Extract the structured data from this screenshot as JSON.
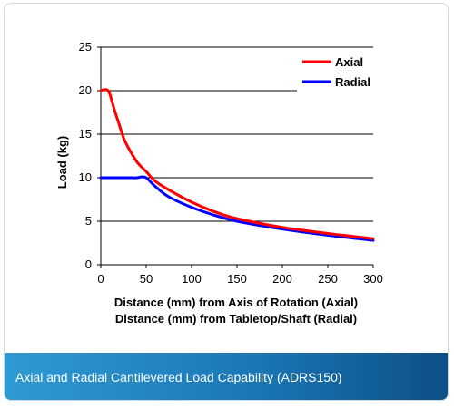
{
  "caption": "Axial and Radial Cantilevered Load Capability (ADRS150)",
  "chart_data": {
    "type": "line",
    "title": "",
    "xlabel": "Distance (mm) from Axis of Rotation (Axial)",
    "xlabel2": "Distance (mm) from Tabletop/Shaft (Radial)",
    "ylabel": "Load (kg)",
    "xlim": [
      0,
      300
    ],
    "ylim": [
      0,
      25
    ],
    "xticks": [
      0,
      50,
      100,
      150,
      200,
      250,
      300
    ],
    "yticks": [
      0,
      5,
      10,
      15,
      20,
      25
    ],
    "grid": "horizontal",
    "legend": "top-right",
    "series": [
      {
        "name": "Axial",
        "color": "#ff0000",
        "x": [
          0,
          3,
          7,
          10,
          15,
          20,
          25,
          30,
          40,
          50,
          60,
          75,
          100,
          125,
          150,
          200,
          250,
          300
        ],
        "y": [
          20,
          20.1,
          20.1,
          19.6,
          17.8,
          16.2,
          14.6,
          13.5,
          11.8,
          10.7,
          9.6,
          8.6,
          7.2,
          6.1,
          5.3,
          4.3,
          3.6,
          3.0
        ]
      },
      {
        "name": "Radial",
        "color": "#0000ff",
        "x": [
          0,
          10,
          20,
          30,
          40,
          45,
          50,
          55,
          60,
          75,
          100,
          125,
          150,
          200,
          250,
          300
        ],
        "y": [
          10,
          10,
          10,
          10,
          10,
          10.1,
          10.0,
          9.5,
          9.0,
          7.8,
          6.6,
          5.7,
          5.0,
          4.1,
          3.4,
          2.8
        ]
      }
    ]
  }
}
